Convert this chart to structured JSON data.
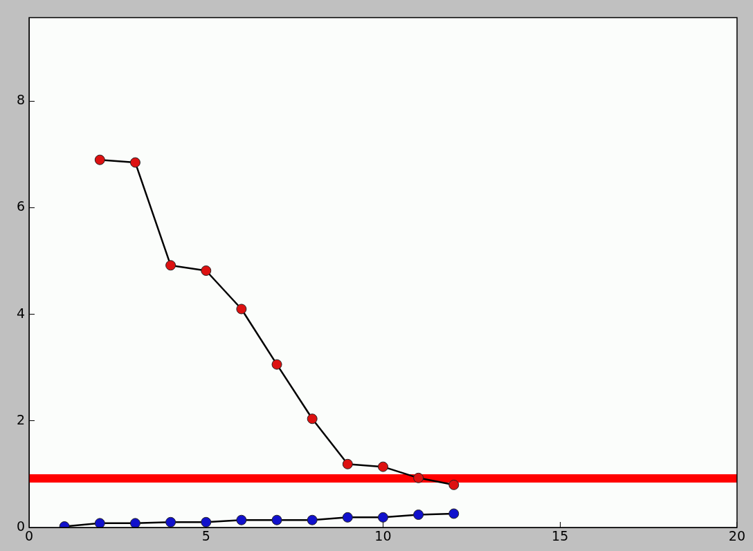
{
  "chart_data": {
    "type": "line",
    "x": [
      1,
      2,
      3,
      4,
      5,
      6,
      7,
      8,
      9,
      10,
      11,
      12
    ],
    "series": [
      {
        "color": "#dd1111",
        "values": [
          null,
          6.9,
          6.85,
          4.92,
          4.82,
          4.1,
          3.06,
          2.04,
          1.19,
          1.14,
          0.93,
          0.8
        ]
      },
      {
        "color": "#1111cc",
        "values": [
          0.02,
          0.08,
          0.08,
          0.1,
          0.1,
          0.14,
          0.14,
          0.14,
          0.19,
          0.19,
          0.24,
          0.26
        ]
      }
    ],
    "xlim": [
      0,
      20
    ],
    "xticks": [
      0,
      5,
      10,
      15,
      20
    ],
    "ylim": [
      0,
      9.57
    ],
    "yticks": [
      0,
      2,
      4,
      6,
      8
    ],
    "ref_lines": [
      {
        "axis": "y",
        "value": 0.92,
        "color": "#ff0000"
      }
    ],
    "marker": "circle",
    "line_style": "solid",
    "grid": false,
    "legend": false
  }
}
